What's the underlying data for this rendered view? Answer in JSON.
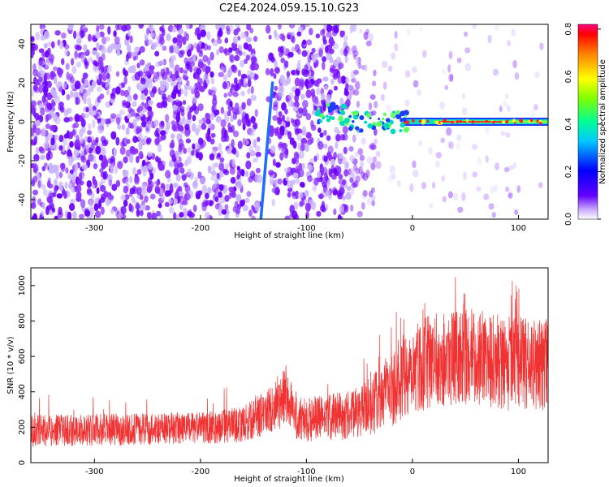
{
  "title": "C2E4.2024.059.15.10.G23",
  "chart_data": [
    {
      "type": "heatmap",
      "xlabel": "Height of straight line (km)",
      "ylabel": "Frequency (Hz)",
      "xlim": [
        -360,
        128
      ],
      "ylim": [
        -50,
        50
      ],
      "x_ticks": [
        -300,
        -200,
        -100,
        0,
        100
      ],
      "y_ticks": [
        -40,
        -20,
        0,
        20,
        40
      ],
      "colorbar": {
        "label": "Normalized spectral amplitude",
        "range": [
          0,
          0.82
        ],
        "ticks": [
          0.0,
          0.2,
          0.4,
          0.6,
          0.8
        ],
        "colors": [
          "#ffffff",
          "#5d00ff",
          "#0000ff",
          "#00c8ff",
          "#00ff80",
          "#7fff00",
          "#ffff00",
          "#ff8000",
          "#ff0000",
          "#ff0080"
        ]
      },
      "features": [
        {
          "name": "diagonal streak",
          "x": [
            -143,
            -132
          ],
          "y": [
            -50,
            20
          ]
        },
        {
          "name": "central carrier",
          "x": [
            -90,
            128
          ],
          "y": [
            0,
            0
          ],
          "peak_amplitude": 0.82
        }
      ],
      "grid": false
    },
    {
      "type": "area",
      "xlabel": "Height of straight line (km)",
      "ylabel": "SNR (10 * v/v)",
      "xlim": [
        -360,
        128
      ],
      "ylim": [
        0,
        1100
      ],
      "x_ticks": [
        -300,
        -200,
        -100,
        0,
        100
      ],
      "y_ticks": [
        0,
        200,
        400,
        600,
        800,
        1000
      ],
      "series_color": "#f03232",
      "envelope_x": [
        -360,
        -300,
        -250,
        -200,
        -160,
        -130,
        -118,
        -108,
        -90,
        -60,
        -40,
        -20,
        0,
        30,
        60,
        90,
        128
      ],
      "envelope_mean": [
        180,
        185,
        190,
        195,
        215,
        310,
        380,
        240,
        250,
        270,
        310,
        420,
        540,
        590,
        600,
        560,
        550
      ],
      "envelope_spread": [
        90,
        90,
        90,
        90,
        100,
        140,
        170,
        130,
        130,
        140,
        160,
        220,
        260,
        270,
        270,
        270,
        260
      ],
      "grid": false
    }
  ]
}
